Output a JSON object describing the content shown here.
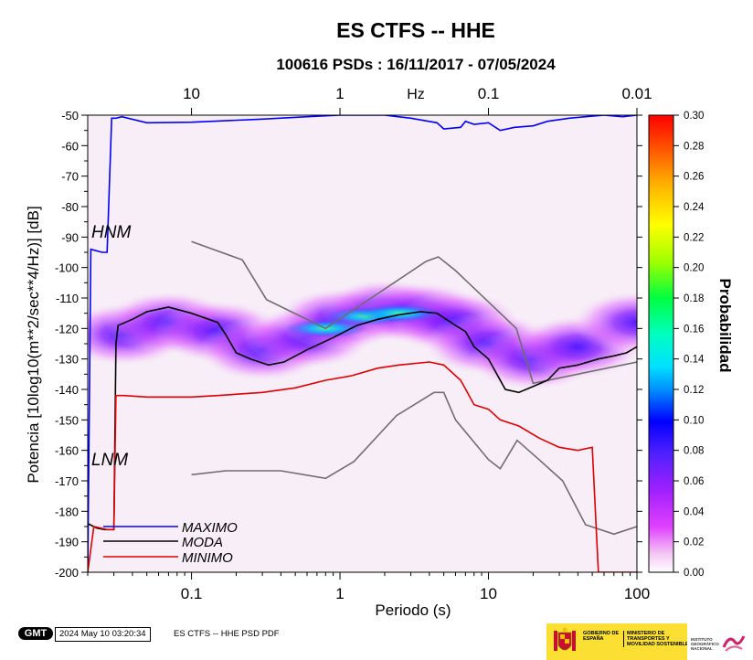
{
  "chart_data": {
    "type": "heatmap",
    "title": "ES CTFS -- HHE",
    "subtitle": "100616 PSDs : 16/11/2017 - 07/05/2024",
    "xlabel": "Periodo (s)",
    "ylabel": "Potencia [10log10(m**2/sec**4/Hz)] [dB]",
    "top_axis_label": "Hz",
    "x_scale": "log",
    "xlim": [
      0.02,
      100
    ],
    "ylim": [
      -200,
      -50
    ],
    "x_ticks": [
      {
        "v": 0.1,
        "label": "0.1"
      },
      {
        "v": 1,
        "label": "1"
      },
      {
        "v": 10,
        "label": "10"
      },
      {
        "v": 100,
        "label": "100"
      }
    ],
    "top_ticks": [
      {
        "v": 0.1,
        "label": "10"
      },
      {
        "v": 1,
        "label": "1"
      },
      {
        "v": 10,
        "label": "0.1"
      },
      {
        "v": 100,
        "label": "0.01"
      }
    ],
    "y_ticks": [
      -50,
      -60,
      -70,
      -80,
      -90,
      -100,
      -110,
      -120,
      -130,
      -140,
      -150,
      -160,
      -170,
      -180,
      -190,
      -200
    ],
    "colorbar": {
      "label": "Probabilidad",
      "range": [
        0,
        0.3
      ],
      "ticks": [
        "0.00",
        "0.02",
        "0.04",
        "0.06",
        "0.08",
        "0.10",
        "0.12",
        "0.14",
        "0.16",
        "0.18",
        "0.20",
        "0.22",
        "0.24",
        "0.26",
        "0.28",
        "0.30"
      ]
    },
    "noise_models": [
      {
        "name": "HNM",
        "points": [
          [
            0.1,
            -91.5
          ],
          [
            0.22,
            -97.5
          ],
          [
            0.32,
            -110.5
          ],
          [
            0.8,
            -120
          ],
          [
            3.8,
            -98
          ],
          [
            4.6,
            -96.5
          ],
          [
            6,
            -101
          ],
          [
            15.4,
            -120
          ],
          [
            20,
            -138
          ],
          [
            100,
            -131
          ]
        ]
      },
      {
        "name": "LNM",
        "points": [
          [
            0.1,
            -168
          ],
          [
            0.17,
            -166.7
          ],
          [
            0.4,
            -166.7
          ],
          [
            0.8,
            -169.2
          ],
          [
            1.24,
            -163.7
          ],
          [
            2.4,
            -148.6
          ],
          [
            4.3,
            -141
          ],
          [
            5,
            -141
          ],
          [
            6,
            -150
          ],
          [
            10,
            -163
          ],
          [
            12,
            -166
          ],
          [
            15.6,
            -156.7
          ],
          [
            21.9,
            -163
          ],
          [
            31.6,
            -170
          ],
          [
            45,
            -184.4
          ],
          [
            70,
            -187.5
          ],
          [
            100,
            -185
          ]
        ]
      }
    ],
    "series": [
      {
        "name": "MAXIMO",
        "color": "#0000ff",
        "points": [
          [
            0.02,
            -200
          ],
          [
            0.021,
            -94
          ],
          [
            0.025,
            -95
          ],
          [
            0.027,
            -95
          ],
          [
            0.029,
            -51
          ],
          [
            0.031,
            -51
          ],
          [
            0.034,
            -50.5
          ],
          [
            0.05,
            -52.5
          ],
          [
            0.1,
            -52.3
          ],
          [
            0.3,
            -51.3
          ],
          [
            0.6,
            -50.5
          ],
          [
            1,
            -50
          ],
          [
            2,
            -50
          ],
          [
            3,
            -51
          ],
          [
            4.5,
            -52.5
          ],
          [
            5,
            -54.5
          ],
          [
            6.5,
            -54
          ],
          [
            7,
            -52
          ],
          [
            8,
            -53
          ],
          [
            10,
            -52.5
          ],
          [
            12,
            -55
          ],
          [
            15,
            -54
          ],
          [
            20,
            -53.5
          ],
          [
            25,
            -52
          ],
          [
            35,
            -51
          ],
          [
            45,
            -50.5
          ],
          [
            60,
            -50
          ],
          [
            80,
            -50.5
          ],
          [
            100,
            -50
          ]
        ]
      },
      {
        "name": "MODA",
        "color": "#000000",
        "points": [
          [
            0.02,
            -184
          ],
          [
            0.023,
            -185.5
          ],
          [
            0.026,
            -186
          ],
          [
            0.03,
            -186
          ],
          [
            0.031,
            -125
          ],
          [
            0.032,
            -119
          ],
          [
            0.04,
            -117
          ],
          [
            0.05,
            -114.5
          ],
          [
            0.07,
            -113
          ],
          [
            0.1,
            -115
          ],
          [
            0.15,
            -118
          ],
          [
            0.17,
            -122
          ],
          [
            0.2,
            -128
          ],
          [
            0.25,
            -130
          ],
          [
            0.33,
            -132
          ],
          [
            0.42,
            -131
          ],
          [
            0.6,
            -127
          ],
          [
            0.9,
            -123
          ],
          [
            1.3,
            -119
          ],
          [
            1.8,
            -117
          ],
          [
            2.5,
            -115.5
          ],
          [
            3.5,
            -114.5
          ],
          [
            4.5,
            -115
          ],
          [
            6,
            -119
          ],
          [
            7,
            -121
          ],
          [
            8,
            -126
          ],
          [
            10,
            -130
          ],
          [
            13,
            -140
          ],
          [
            16,
            -141
          ],
          [
            20,
            -139
          ],
          [
            25,
            -137
          ],
          [
            30,
            -133
          ],
          [
            40,
            -132
          ],
          [
            55,
            -130
          ],
          [
            70,
            -129
          ],
          [
            85,
            -128
          ],
          [
            100,
            -126
          ]
        ]
      },
      {
        "name": "MINIMO",
        "color": "#e00000",
        "points": [
          [
            0.02,
            -200
          ],
          [
            0.022,
            -185
          ],
          [
            0.027,
            -186
          ],
          [
            0.03,
            -186
          ],
          [
            0.031,
            -142
          ],
          [
            0.035,
            -142
          ],
          [
            0.05,
            -142.5
          ],
          [
            0.1,
            -142.5
          ],
          [
            0.15,
            -142
          ],
          [
            0.3,
            -141
          ],
          [
            0.5,
            -139.5
          ],
          [
            0.8,
            -137
          ],
          [
            1.2,
            -135.5
          ],
          [
            1.8,
            -133
          ],
          [
            2.5,
            -132
          ],
          [
            4,
            -131
          ],
          [
            5,
            -132
          ],
          [
            6.5,
            -137
          ],
          [
            8,
            -145
          ],
          [
            10,
            -146.5
          ],
          [
            12,
            -150
          ],
          [
            16,
            -152
          ],
          [
            22,
            -156
          ],
          [
            30,
            -159
          ],
          [
            40,
            -160
          ],
          [
            50,
            -159
          ],
          [
            55,
            -200
          ],
          [
            60,
            -200
          ],
          [
            100,
            -200
          ]
        ]
      }
    ],
    "density": {
      "centers": [
        [
          0.035,
          -122
        ],
        [
          0.07,
          -118
        ],
        [
          0.15,
          -121
        ],
        [
          0.3,
          -127
        ],
        [
          0.6,
          -123
        ],
        [
          1,
          -117
        ],
        [
          2,
          -114
        ],
        [
          3.5,
          -115
        ],
        [
          6,
          -118
        ],
        [
          10,
          -125
        ],
        [
          20,
          -130
        ],
        [
          40,
          -126
        ],
        [
          100,
          -118
        ]
      ],
      "peak": [
        [
          0.8,
          -120
        ],
        [
          1.5,
          -116
        ],
        [
          2.5,
          -115
        ]
      ]
    }
  },
  "legend": {
    "maximo": "MAXIMO",
    "moda": "MODA",
    "minimo": "MINIMO",
    "hnm": "HNM",
    "lnm": "LNM"
  },
  "footer": {
    "gmt": "GMT",
    "timestamp": "2024 May 10 03:20:34",
    "label": "ES CTFS -- HHE PSD PDF",
    "gob_text": "GOBIERNO DE ESPAÑA",
    "ministerio_text": "MINISTERIO DE TRANSPORTES Y MOVILIDAD SOSTENIBLE",
    "ign_text": "INSTITUTO GEOGRÁFICO NACIONAL"
  }
}
